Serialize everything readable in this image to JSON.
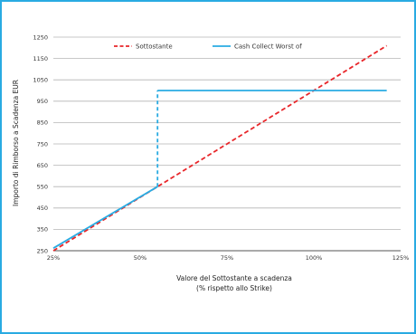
{
  "chart_data": {
    "type": "line",
    "xlabel": "Valore del Sottostante a scadenza",
    "xlabel_line2": "(% rispetto allo Strike)",
    "ylabel": "Importo di Rimborso a Scadenza EUR",
    "xlim": [
      25,
      125
    ],
    "ylim": [
      250,
      1250
    ],
    "x_ticks": [
      {
        "value": 25,
        "label": "25%"
      },
      {
        "value": 50,
        "label": "50%"
      },
      {
        "value": 75,
        "label": "75%"
      },
      {
        "value": 100,
        "label": "100%"
      },
      {
        "value": 125,
        "label": "125%"
      }
    ],
    "y_ticks": [
      250,
      350,
      450,
      550,
      650,
      750,
      850,
      950,
      1050,
      1150,
      1250
    ],
    "grid": "horizontal",
    "legend_position": "top",
    "series": [
      {
        "name": "Sottostante",
        "color": "#e8262a",
        "style": "dashed",
        "points": [
          [
            25,
            250
          ],
          [
            121,
            1210
          ]
        ]
      },
      {
        "name": "Cash Collect Worst of",
        "color": "#29abe2",
        "style": "solid",
        "points": [
          [
            25,
            262
          ],
          [
            55,
            550
          ]
        ],
        "jump": {
          "x": 55,
          "from": 550,
          "to": 1000,
          "style": "dashed"
        },
        "after_jump": [
          [
            55,
            1000
          ],
          [
            121,
            1000
          ]
        ]
      }
    ]
  }
}
